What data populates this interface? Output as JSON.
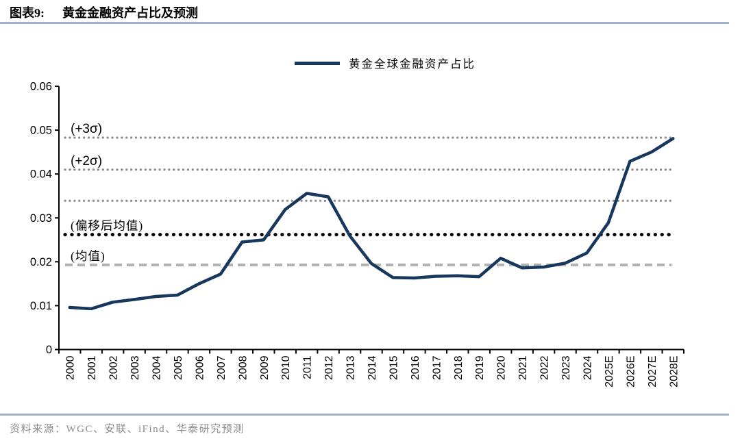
{
  "figure": {
    "tag": "图表9:",
    "title": "黄金金融资产占比及预测"
  },
  "legend": {
    "label": "黄金全球金融资产占比"
  },
  "footer": {
    "source": "资料来源：WGC、安联、iFind、华泰研究预测"
  },
  "colors": {
    "series_line": "#17375e",
    "axis": "#000000",
    "divider": "#a3b2cc",
    "source_text": "#8c8c8c",
    "ref_dotted_small": "#8c8c8c",
    "ref_dotted_large": "#0a0a0a",
    "ref_dashed": "#b0b0b0"
  },
  "chart_data": {
    "type": "line",
    "title": "黄金金融资产占比及预测",
    "xlabel": "",
    "ylabel": "",
    "ylim": [
      0,
      0.06
    ],
    "grid": false,
    "legend_position": "top",
    "categories": [
      "2000",
      "2001",
      "2002",
      "2003",
      "2004",
      "2005",
      "2006",
      "2007",
      "2008",
      "2009",
      "2010",
      "2011",
      "2012",
      "2013",
      "2014",
      "2015",
      "2016",
      "2017",
      "2018",
      "2019",
      "2020",
      "2021",
      "2022",
      "2023",
      "2024",
      "2025E",
      "2026E",
      "2027E",
      "2028E"
    ],
    "series": [
      {
        "name": "黄金全球金融资产占比",
        "values": [
          0.0096,
          0.0093,
          0.0108,
          0.0114,
          0.0121,
          0.0124,
          0.015,
          0.0172,
          0.0245,
          0.025,
          0.0319,
          0.0356,
          0.0348,
          0.0259,
          0.0196,
          0.0164,
          0.0163,
          0.0167,
          0.0168,
          0.0166,
          0.0208,
          0.0186,
          0.0188,
          0.0197,
          0.022,
          0.0289,
          0.0429,
          0.045,
          0.0481
        ]
      }
    ],
    "y_ticks": {
      "values": [
        0,
        0.01,
        0.02,
        0.03,
        0.04,
        0.05,
        0.06
      ],
      "labels": [
        "0",
        "0.01",
        "0.02",
        "0.03",
        "0.04",
        "0.05",
        "0.06"
      ]
    },
    "reference_lines": [
      {
        "label": "(+3σ)",
        "value": 0.0483,
        "style": "dotted-small"
      },
      {
        "label": "(+2σ)",
        "value": 0.041,
        "style": "dotted-small"
      },
      {
        "label": "",
        "value": 0.0339,
        "style": "dotted-small"
      },
      {
        "label": "(偏移后均值)",
        "value": 0.0262,
        "style": "dotted-large"
      },
      {
        "label": "(均值)",
        "value": 0.0193,
        "style": "dashed"
      }
    ]
  }
}
